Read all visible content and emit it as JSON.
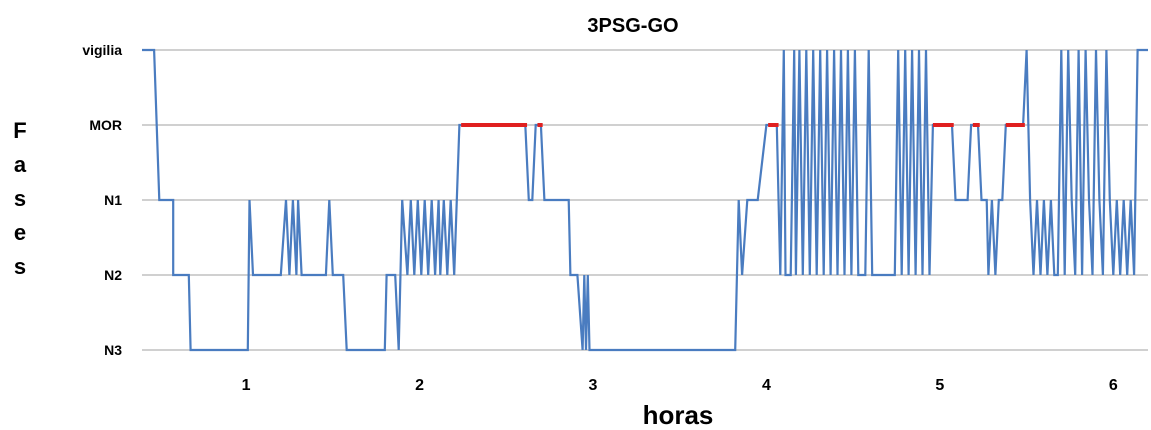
{
  "chart_data": {
    "type": "line",
    "title": "3PSG-GO",
    "xlabel": "horas",
    "ylabel": "Fases",
    "stage_labels": [
      "N3",
      "N2",
      "N1",
      "MOR",
      "vigilia"
    ],
    "stage_levels": [
      0,
      1,
      2,
      3,
      4
    ],
    "x_ticks": [
      "1",
      "2",
      "3",
      "4",
      "5",
      "6"
    ],
    "x_tick_values": [
      1,
      2,
      3,
      4,
      5,
      6
    ],
    "xlim": [
      0.4,
      6.2
    ],
    "ylim": [
      0,
      4
    ],
    "grid": true,
    "line_color": "#4a7cc0",
    "rem_color": "#e02020",
    "series": [
      {
        "type": "step",
        "points": [
          [
            0.4,
            4
          ],
          [
            0.47,
            4
          ],
          [
            0.5,
            2
          ],
          [
            0.58,
            2
          ],
          [
            0.58,
            1
          ],
          [
            0.6,
            1
          ],
          [
            0.67,
            1
          ],
          [
            0.68,
            0
          ],
          [
            1.01,
            0
          ],
          [
            1.02,
            2
          ],
          [
            1.04,
            1
          ],
          [
            1.2,
            1
          ],
          [
            1.23,
            2
          ],
          [
            1.25,
            1
          ],
          [
            1.27,
            2
          ],
          [
            1.29,
            1
          ],
          [
            1.3,
            2
          ],
          [
            1.32,
            1
          ],
          [
            1.46,
            1
          ],
          [
            1.48,
            2
          ],
          [
            1.5,
            1
          ],
          [
            1.56,
            1
          ],
          [
            1.58,
            0
          ],
          [
            1.8,
            0
          ],
          [
            1.81,
            1
          ],
          [
            1.86,
            1
          ],
          [
            1.88,
            0
          ],
          [
            1.9,
            2
          ],
          [
            1.93,
            1
          ],
          [
            1.95,
            2
          ],
          [
            1.97,
            1
          ],
          [
            1.99,
            2
          ],
          [
            2.01,
            1
          ],
          [
            2.03,
            2
          ],
          [
            2.05,
            1
          ],
          [
            2.07,
            2
          ],
          [
            2.09,
            1
          ],
          [
            2.11,
            2
          ],
          [
            2.12,
            1
          ],
          [
            2.14,
            2
          ],
          [
            2.16,
            1
          ],
          [
            2.18,
            2
          ],
          [
            2.2,
            1
          ],
          [
            2.23,
            3
          ],
          [
            2.61,
            3
          ],
          [
            2.63,
            2
          ],
          [
            2.65,
            2
          ],
          [
            2.67,
            3
          ],
          [
            2.7,
            3
          ],
          [
            2.72,
            2
          ],
          [
            2.8,
            2
          ],
          [
            2.86,
            2
          ],
          [
            2.87,
            1
          ],
          [
            2.91,
            1
          ],
          [
            2.94,
            0
          ],
          [
            2.95,
            1
          ],
          [
            2.96,
            0
          ],
          [
            2.97,
            1
          ],
          [
            2.98,
            0
          ],
          [
            3.82,
            0
          ],
          [
            3.84,
            2
          ],
          [
            3.86,
            1
          ],
          [
            3.89,
            2
          ],
          [
            3.95,
            2
          ],
          [
            4.0,
            3
          ],
          [
            4.06,
            3
          ],
          [
            4.08,
            1
          ],
          [
            4.1,
            4
          ],
          [
            4.11,
            1
          ],
          [
            4.14,
            1
          ],
          [
            4.16,
            4
          ],
          [
            4.17,
            1
          ],
          [
            4.19,
            4
          ],
          [
            4.21,
            1
          ],
          [
            4.23,
            4
          ],
          [
            4.25,
            1
          ],
          [
            4.27,
            4
          ],
          [
            4.29,
            1
          ],
          [
            4.31,
            4
          ],
          [
            4.33,
            1
          ],
          [
            4.35,
            4
          ],
          [
            4.37,
            1
          ],
          [
            4.39,
            4
          ],
          [
            4.41,
            1
          ],
          [
            4.43,
            4
          ],
          [
            4.45,
            1
          ],
          [
            4.47,
            4
          ],
          [
            4.49,
            1
          ],
          [
            4.51,
            4
          ],
          [
            4.53,
            1
          ],
          [
            4.57,
            1
          ],
          [
            4.59,
            4
          ],
          [
            4.61,
            1
          ],
          [
            4.69,
            1
          ],
          [
            4.74,
            1
          ],
          [
            4.76,
            4
          ],
          [
            4.78,
            1
          ],
          [
            4.8,
            4
          ],
          [
            4.82,
            1
          ],
          [
            4.84,
            4
          ],
          [
            4.86,
            1
          ],
          [
            4.88,
            4
          ],
          [
            4.9,
            1
          ],
          [
            4.92,
            4
          ],
          [
            4.94,
            1
          ],
          [
            4.96,
            3
          ],
          [
            5.07,
            3
          ],
          [
            5.09,
            2
          ],
          [
            5.16,
            2
          ],
          [
            5.18,
            3
          ],
          [
            5.22,
            3
          ],
          [
            5.24,
            2
          ],
          [
            5.27,
            2
          ],
          [
            5.28,
            1
          ],
          [
            5.3,
            2
          ],
          [
            5.32,
            1
          ],
          [
            5.34,
            2
          ],
          [
            5.36,
            2
          ],
          [
            5.38,
            3
          ],
          [
            5.48,
            3
          ],
          [
            5.5,
            4
          ],
          [
            5.52,
            2
          ],
          [
            5.54,
            1
          ],
          [
            5.56,
            2
          ],
          [
            5.58,
            1
          ],
          [
            5.6,
            2
          ],
          [
            5.62,
            1
          ],
          [
            5.64,
            2
          ],
          [
            5.66,
            1
          ],
          [
            5.68,
            1
          ],
          [
            5.7,
            4
          ],
          [
            5.72,
            1
          ],
          [
            5.74,
            4
          ],
          [
            5.76,
            2
          ],
          [
            5.78,
            1
          ],
          [
            5.8,
            4
          ],
          [
            5.82,
            1
          ],
          [
            5.84,
            4
          ],
          [
            5.86,
            2
          ],
          [
            5.88,
            1
          ],
          [
            5.9,
            4
          ],
          [
            5.92,
            2
          ],
          [
            5.94,
            1
          ],
          [
            5.96,
            4
          ],
          [
            5.98,
            2
          ],
          [
            6.0,
            1
          ],
          [
            6.02,
            2
          ],
          [
            6.04,
            1
          ],
          [
            6.06,
            2
          ],
          [
            6.08,
            1
          ],
          [
            6.1,
            2
          ],
          [
            6.12,
            1
          ],
          [
            6.14,
            4
          ],
          [
            6.17,
            4
          ],
          [
            6.2,
            4
          ]
        ]
      }
    ],
    "rem_segments": [
      [
        2.24,
        2.62
      ],
      [
        2.68,
        2.71
      ],
      [
        4.01,
        4.07
      ],
      [
        4.96,
        5.08
      ],
      [
        5.19,
        5.23
      ],
      [
        5.38,
        5.49
      ]
    ]
  }
}
